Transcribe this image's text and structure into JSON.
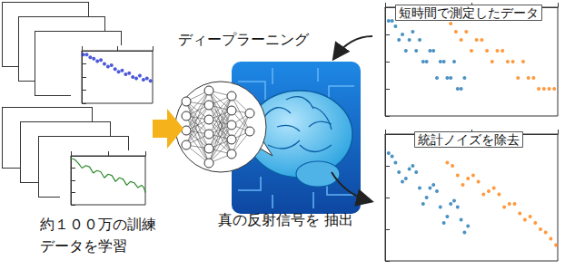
{
  "diagram": {
    "deep_learning": "ディープラーニング",
    "training": [
      "約１００万の訓練",
      "データを学習"
    ],
    "extract": "真の反射信号を 抽出"
  },
  "chart_data": [
    {
      "type": "scatter",
      "xlim": [
        0,
        1
      ],
      "ylim": [
        -4,
        0
      ],
      "xticks": [
        0,
        0.5,
        1
      ],
      "yticks": [
        -4,
        -3,
        -2,
        -1,
        0
      ],
      "tick_labels": false,
      "grid": false,
      "marker": "circle",
      "series": [
        {
          "color": "#1f2fd0",
          "x": [
            0.02,
            0.07,
            0.12,
            0.17,
            0.22,
            0.27,
            0.32,
            0.37,
            0.42,
            0.47,
            0.52,
            0.57,
            0.62,
            0.67,
            0.72,
            0.77,
            0.82,
            0.87,
            0.92,
            0.97
          ],
          "values": [
            -0.3,
            -0.3,
            -0.5,
            -0.6,
            -0.8,
            -0.7,
            -1.0,
            -1.2,
            -1.1,
            -1.4,
            -1.6,
            -1.5,
            -1.8,
            -1.7,
            -2.0,
            -2.1,
            -1.9,
            -2.2,
            -2.1,
            -2.3
          ]
        }
      ]
    },
    {
      "type": "line",
      "xlim": [
        0,
        1
      ],
      "ylim": [
        -4,
        0
      ],
      "xticks": [
        0,
        0.5,
        1
      ],
      "yticks": [
        -4,
        -3,
        -2,
        -1,
        0
      ],
      "tick_labels": false,
      "grid": false,
      "line_style": "solid",
      "series": [
        {
          "color": "#2e8b2e",
          "x": [
            0.0,
            0.05,
            0.1,
            0.15,
            0.2,
            0.25,
            0.3,
            0.35,
            0.4,
            0.45,
            0.5,
            0.55,
            0.6,
            0.65,
            0.7,
            0.75,
            0.8,
            0.85,
            0.9,
            0.95,
            0.98,
            1.0
          ],
          "values": [
            -0.2,
            -0.3,
            -0.6,
            -1.0,
            -0.8,
            -0.9,
            -1.4,
            -1.2,
            -1.3,
            -1.8,
            -1.5,
            -1.6,
            -2.1,
            -1.8,
            -1.9,
            -2.4,
            -2.1,
            -2.2,
            -2.6,
            -2.4,
            -2.6,
            -3.0
          ]
        }
      ]
    },
    {
      "type": "scatter",
      "title": "短時間で測定したデータ",
      "xlim": [
        0,
        1
      ],
      "ylim": [
        -4,
        0
      ],
      "xticks": [
        0,
        0.5,
        1
      ],
      "yticks": [
        -4,
        -3,
        -2,
        -1,
        0
      ],
      "tick_labels": false,
      "grid": false,
      "marker": "circle",
      "series": [
        {
          "color": "#1f77b4",
          "x": [
            0.02,
            0.04,
            0.06,
            0.08,
            0.1,
            0.12,
            0.14,
            0.16,
            0.18,
            0.2,
            0.22,
            0.24,
            0.26,
            0.28,
            0.3,
            0.32,
            0.34,
            0.36,
            0.38,
            0.4,
            0.42,
            0.44,
            0.46
          ],
          "values": [
            -0.5,
            -0.5,
            -0.7,
            -1.2,
            -1.0,
            -1.6,
            -1.2,
            -0.9,
            -1.6,
            -1.2,
            -2.0,
            -2.0,
            -1.6,
            -1.6,
            -2.6,
            -2.0,
            -2.0,
            -2.6,
            -2.6,
            -2.0,
            -3.0,
            -3.0,
            -2.6
          ]
        },
        {
          "color": "#ff7f0e",
          "x": [
            0.38,
            0.41,
            0.44,
            0.47,
            0.5,
            0.53,
            0.56,
            0.59,
            0.62,
            0.65,
            0.68,
            0.71,
            0.74,
            0.77,
            0.8,
            0.83,
            0.86,
            0.89,
            0.92,
            0.95,
            0.98
          ],
          "values": [
            -0.6,
            -0.9,
            -1.2,
            -0.9,
            -1.6,
            -1.2,
            -1.2,
            -1.6,
            -2.0,
            -1.6,
            -1.6,
            -2.0,
            -2.0,
            -2.6,
            -2.0,
            -2.6,
            -2.6,
            -3.0,
            -3.0,
            -3.0,
            -3.0
          ]
        }
      ]
    },
    {
      "type": "scatter",
      "title": "統計ノイズを除去",
      "xlim": [
        0,
        1
      ],
      "ylim": [
        -4,
        0
      ],
      "xticks": [
        0,
        0.5,
        1
      ],
      "yticks": [
        -4,
        -3,
        -2,
        -1,
        0
      ],
      "tick_labels": false,
      "grid": false,
      "marker": "circle",
      "series": [
        {
          "color": "#1f77b4",
          "x": [
            0.02,
            0.04,
            0.06,
            0.08,
            0.1,
            0.12,
            0.14,
            0.16,
            0.18,
            0.2,
            0.22,
            0.24,
            0.26,
            0.28,
            0.3,
            0.32,
            0.34,
            0.36,
            0.38,
            0.4,
            0.42,
            0.44,
            0.46,
            0.48
          ],
          "values": [
            -0.6,
            -0.7,
            -0.9,
            -1.2,
            -1.5,
            -1.4,
            -1.1,
            -1.0,
            -1.2,
            -1.7,
            -2.2,
            -2.0,
            -1.7,
            -1.6,
            -1.8,
            -2.3,
            -2.8,
            -2.6,
            -2.2,
            -2.1,
            -2.3,
            -2.7,
            -3.1,
            -2.9
          ]
        },
        {
          "color": "#ff7f0e",
          "x": [
            0.36,
            0.39,
            0.42,
            0.45,
            0.48,
            0.51,
            0.54,
            0.57,
            0.6,
            0.63,
            0.66,
            0.69,
            0.72,
            0.75,
            0.78,
            0.81,
            0.84,
            0.87,
            0.9,
            0.93,
            0.96,
            0.99
          ],
          "values": [
            -0.9,
            -1.0,
            -1.3,
            -1.6,
            -1.4,
            -1.3,
            -1.5,
            -1.9,
            -1.8,
            -1.7,
            -1.9,
            -2.3,
            -2.2,
            -2.2,
            -2.5,
            -2.7,
            -2.6,
            -2.8,
            -3.0,
            -3.1,
            -3.3,
            -3.5
          ]
        }
      ]
    }
  ]
}
